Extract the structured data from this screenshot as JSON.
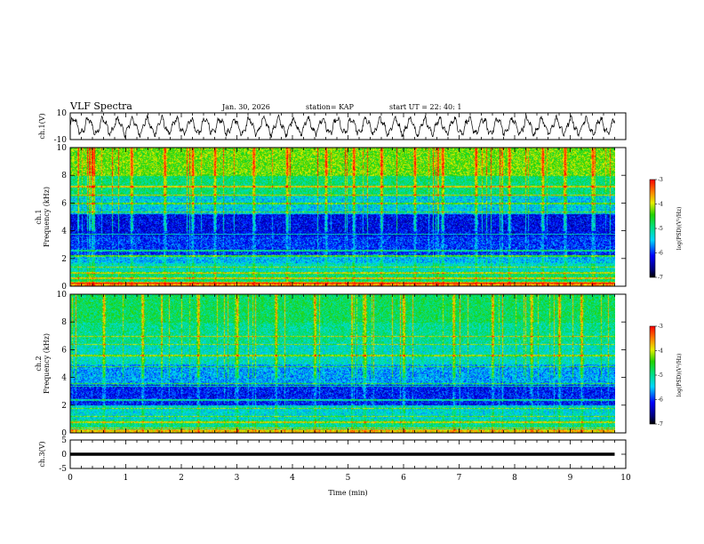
{
  "header": {
    "title": "VLF Spectra",
    "date": "Jan. 30, 2026",
    "station": "station= KAP",
    "start": "start  UT =   22: 40: 1"
  },
  "chart_data": [
    {
      "type": "line",
      "name": "ch1-waveform",
      "ylabel": "ch.1(V)",
      "ylim": [
        -10,
        10
      ],
      "y_ticks": [
        "10",
        "-10"
      ],
      "xlim": [
        0,
        10
      ],
      "data_end_min": 9.8,
      "series": [
        {
          "name": "ch.1",
          "style": "dense oscillation ~ +/-6 V, ~37 cycles over 9.8 min"
        }
      ]
    },
    {
      "type": "heatmap",
      "name": "ch1-spectrogram",
      "ylabel": "ch.1\nFrequency (kHz)",
      "xlabel": "",
      "xlim": [
        0,
        10
      ],
      "ylim": [
        0,
        10
      ],
      "y_ticks": [
        "0",
        "2",
        "4",
        "6",
        "8",
        "10"
      ],
      "data_end_min": 9.8,
      "colorbar": {
        "label": "log(PSD)(V²/Hz)",
        "range": [
          -7,
          -3
        ],
        "ticks": [
          "-3",
          "-4",
          "-5",
          "-6",
          "-7"
        ]
      },
      "profile": [
        {
          "f_kHz": [
            0,
            0.3
          ],
          "log_psd": -3.6
        },
        {
          "f_kHz": [
            0.3,
            1.0
          ],
          "log_psd": -4.9
        },
        {
          "f_kHz": [
            1.0,
            1.7
          ],
          "log_psd": -5.2
        },
        {
          "f_kHz": [
            1.7,
            2.3
          ],
          "log_psd": -5.5
        },
        {
          "f_kHz": [
            2.3,
            3.6
          ],
          "log_psd": -6.0
        },
        {
          "f_kHz": [
            3.6,
            5.2
          ],
          "log_psd": -6.2
        },
        {
          "f_kHz": [
            5.2,
            6.5
          ],
          "log_psd": -5.4
        },
        {
          "f_kHz": [
            6.5,
            8.0
          ],
          "log_psd": -4.9
        },
        {
          "f_kHz": [
            8.0,
            10.0
          ],
          "log_psd": -4.3
        }
      ],
      "lines_kHz": [
        0.3,
        0.6,
        1.0,
        1.4,
        2.2,
        2.6,
        3.8,
        5.4,
        6.0,
        6.6,
        7.2
      ],
      "bursts_min": [
        0.4,
        1.1,
        1.7,
        2.2,
        2.6,
        3.3,
        3.9,
        4.6,
        5.1,
        5.6,
        6.2,
        6.7,
        7.3,
        7.9,
        8.5,
        8.9,
        9.4
      ]
    },
    {
      "type": "heatmap",
      "name": "ch2-spectrogram",
      "ylabel": "ch.2\nFrequency (kHz)",
      "xlabel": "",
      "xlim": [
        0,
        10
      ],
      "ylim": [
        0,
        10
      ],
      "y_ticks": [
        "0",
        "2",
        "4",
        "6",
        "8",
        "10"
      ],
      "data_end_min": 9.8,
      "colorbar": {
        "label": "log(PSD)(V²/Hz)",
        "range": [
          -7,
          -3
        ],
        "ticks": [
          "-3",
          "-4",
          "-5",
          "-6",
          "-7"
        ]
      },
      "profile": [
        {
          "f_kHz": [
            0,
            0.3
          ],
          "log_psd": -3.8
        },
        {
          "f_kHz": [
            0.3,
            1.0
          ],
          "log_psd": -5.0
        },
        {
          "f_kHz": [
            1.0,
            2.0
          ],
          "log_psd": -5.3
        },
        {
          "f_kHz": [
            2.0,
            3.5
          ],
          "log_psd": -6.1
        },
        {
          "f_kHz": [
            3.5,
            5.0
          ],
          "log_psd": -5.6
        },
        {
          "f_kHz": [
            5.0,
            6.5
          ],
          "log_psd": -5.2
        },
        {
          "f_kHz": [
            6.5,
            8.0
          ],
          "log_psd": -5.0
        },
        {
          "f_kHz": [
            8.0,
            10.0
          ],
          "log_psd": -4.8
        }
      ],
      "lines_kHz": [
        0.4,
        0.8,
        1.2,
        1.8,
        2.4,
        3.4,
        3.6,
        4.8,
        5.6,
        6.4,
        7.0
      ],
      "bursts_min": [
        0.6,
        1.3,
        2.3,
        3.0,
        3.7,
        4.4,
        5.3,
        6.0,
        6.9,
        7.6,
        8.3,
        8.8,
        9.2
      ]
    },
    {
      "type": "line",
      "name": "ch3-waveform",
      "ylabel": "ch.3(V)",
      "xlabel": "Time (min)",
      "ylim": [
        -5,
        5
      ],
      "y_ticks": [
        "5",
        "0",
        "-5"
      ],
      "xlim": [
        0,
        10
      ],
      "x_ticks": [
        "0",
        "1",
        "2",
        "3",
        "4",
        "5",
        "6",
        "7",
        "8",
        "9",
        "10"
      ],
      "data_end_min": 9.8,
      "series": [
        {
          "name": "ch.3",
          "style": "dense fill band around 0 V, about -0.5 to 0.5 V"
        }
      ]
    }
  ]
}
